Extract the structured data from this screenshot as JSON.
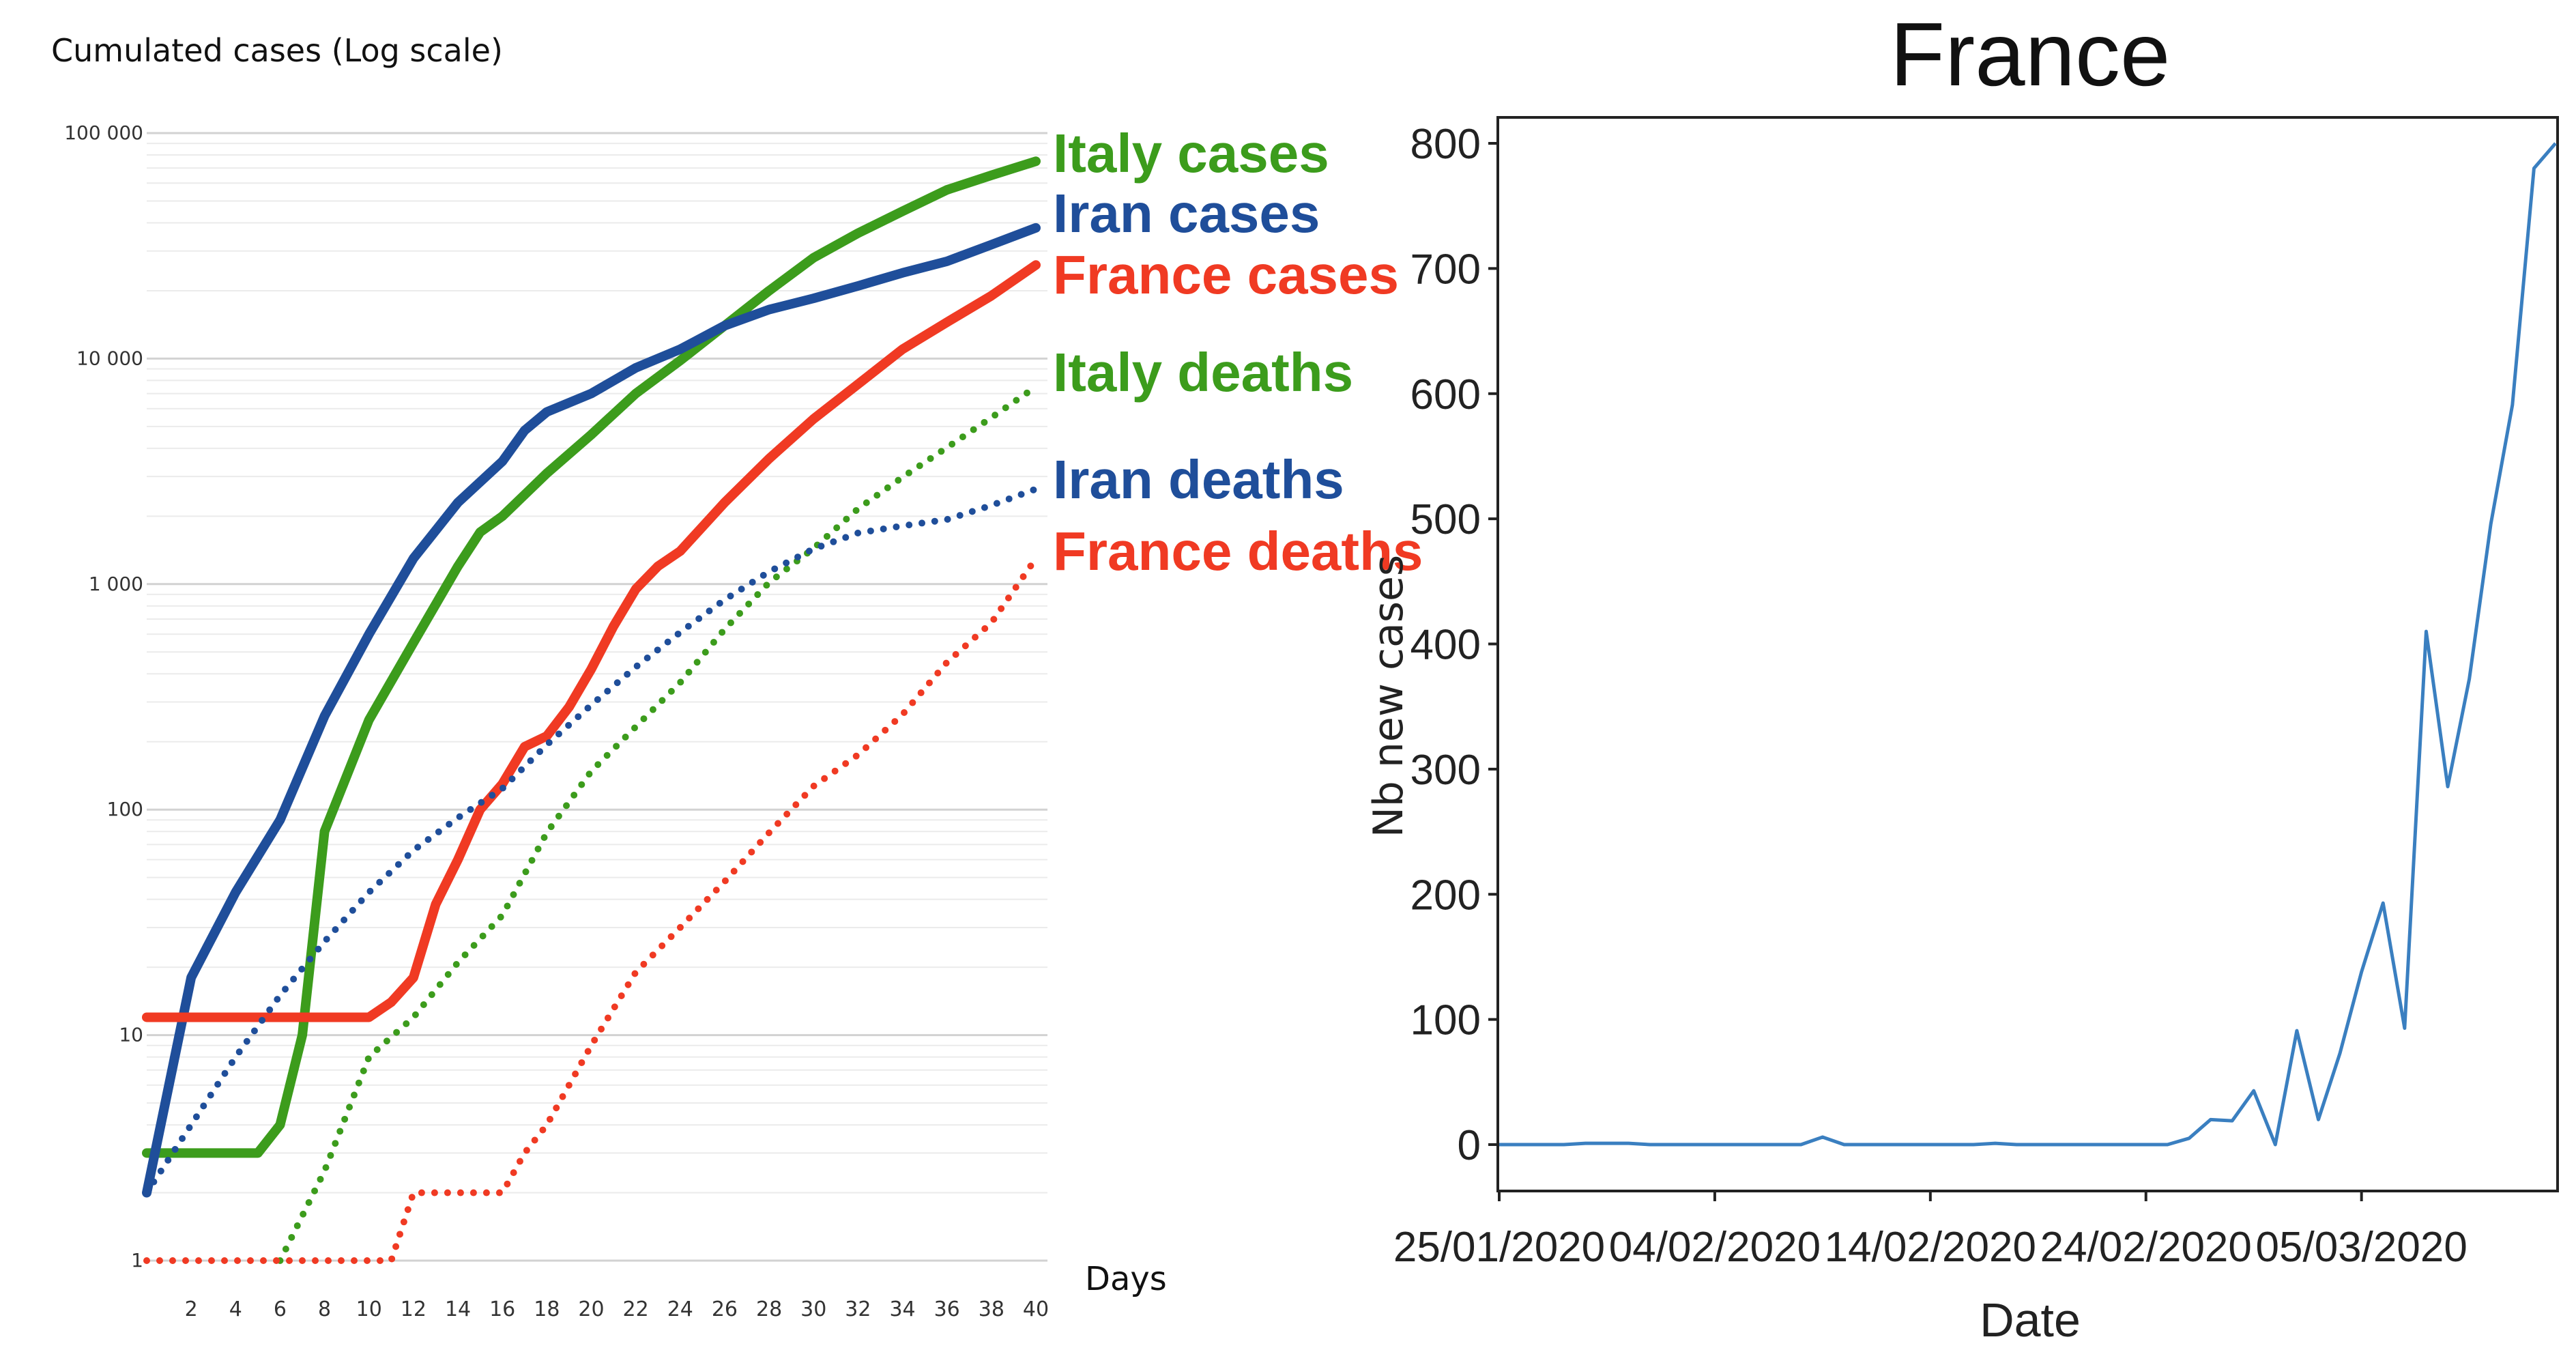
{
  "chart_data": [
    {
      "type": "line",
      "title": "",
      "ylabel": "Cumulated cases (Log scale)",
      "xlabel": "Days",
      "yscale": "log",
      "ylim": [
        1,
        100000
      ],
      "xlim": [
        0,
        40
      ],
      "ytick_labels": [
        "1",
        "10",
        "100",
        "1 000",
        "10 000",
        "100 000"
      ],
      "ytick_values": [
        1,
        10,
        100,
        1000,
        10000,
        100000
      ],
      "xtick_values": [
        2,
        4,
        6,
        8,
        10,
        12,
        14,
        16,
        18,
        20,
        22,
        24,
        26,
        28,
        30,
        32,
        34,
        36,
        38,
        40
      ],
      "xtick_labels": [
        "2",
        "4",
        "6",
        "8",
        "10",
        "12",
        "14",
        "16",
        "18",
        "20",
        "22",
        "24",
        "26",
        "28",
        "30",
        "32",
        "34",
        "36",
        "38",
        "40"
      ],
      "series": [
        {
          "name": "Italy cases",
          "color": "#3c9c1c",
          "style": "solid",
          "x": [
            0,
            2,
            4,
            5,
            6,
            7,
            8,
            10,
            12,
            14,
            15,
            16,
            18,
            20,
            22,
            24,
            26,
            28,
            30,
            32,
            34,
            36,
            38,
            40
          ],
          "values": [
            3,
            3,
            3,
            3,
            4,
            10,
            80,
            250,
            550,
            1200,
            1700,
            2000,
            3100,
            4600,
            7000,
            9800,
            14000,
            20000,
            28000,
            36000,
            45000,
            56000,
            65000,
            75000
          ]
        },
        {
          "name": "Iran cases",
          "color": "#1f4e9a",
          "style": "solid",
          "x": [
            0,
            1,
            2,
            4,
            6,
            8,
            10,
            12,
            14,
            16,
            17,
            18,
            20,
            22,
            24,
            26,
            28,
            30,
            32,
            34,
            36,
            38,
            40
          ],
          "values": [
            2,
            6,
            18,
            43,
            90,
            260,
            600,
            1300,
            2300,
            3500,
            4800,
            5800,
            7000,
            9100,
            11000,
            14000,
            16500,
            18500,
            21000,
            24000,
            27000,
            32000,
            38000
          ]
        },
        {
          "name": "France cases",
          "color": "#f03a23",
          "style": "solid",
          "x": [
            0,
            2,
            4,
            6,
            8,
            10,
            11,
            12,
            13,
            14,
            15,
            16,
            17,
            18,
            19,
            20,
            21,
            22,
            23,
            24,
            26,
            28,
            30,
            32,
            34,
            36,
            38,
            40
          ],
          "values": [
            12,
            12,
            12,
            12,
            12,
            12,
            14,
            18,
            38,
            60,
            100,
            130,
            190,
            212,
            285,
            420,
            650,
            950,
            1200,
            1400,
            2300,
            3600,
            5400,
            7700,
            11000,
            14500,
            19000,
            26000
          ]
        },
        {
          "name": "Italy deaths",
          "color": "#3c9c1c",
          "style": "dotted",
          "x": [
            6,
            8,
            10,
            12,
            14,
            16,
            18,
            20,
            22,
            24,
            26,
            28,
            30,
            32,
            34,
            36,
            38,
            40
          ],
          "values": [
            1,
            2.5,
            8,
            12,
            21,
            34,
            79,
            148,
            233,
            366,
            631,
            1016,
            1441,
            2158,
            2978,
            4032,
            5476,
            7500
          ]
        },
        {
          "name": "Iran deaths",
          "color": "#1f4e9a",
          "style": "dotted",
          "x": [
            0,
            2,
            4,
            6,
            8,
            10,
            12,
            14,
            16,
            18,
            20,
            22,
            24,
            26,
            28,
            30,
            32,
            34,
            36,
            38,
            40
          ],
          "values": [
            2,
            4,
            8,
            15,
            26,
            43,
            66,
            92,
            124,
            194,
            291,
            429,
            611,
            853,
            1135,
            1433,
            1685,
            1812,
            1934,
            2234,
            2640
          ]
        },
        {
          "name": "France deaths",
          "color": "#f03a23",
          "style": "dotted",
          "x": [
            0,
            10,
            11,
            12,
            13,
            14,
            15,
            16,
            17,
            18,
            20,
            22,
            24,
            26,
            28,
            30,
            32,
            34,
            36,
            38,
            40
          ],
          "values": [
            1,
            1,
            1,
            2,
            2,
            2,
            2,
            2,
            3,
            4,
            9,
            19,
            30,
            48,
            79,
            127,
            175,
            264,
            450,
            674,
            1300
          ]
        }
      ],
      "legend": [
        "Italy cases",
        "Iran cases",
        "France cases",
        "Italy deaths",
        "Iran deaths",
        "France deaths"
      ]
    },
    {
      "type": "line",
      "title": "France",
      "xlabel": "Date",
      "ylabel": "Nb new cases",
      "ylim": [
        -40,
        820
      ],
      "yticks": [
        0,
        100,
        200,
        300,
        400,
        500,
        600,
        700,
        800
      ],
      "xtick_labels": [
        "25/01/2020",
        "04/02/2020",
        "14/02/2020",
        "24/02/2020",
        "05/03/2020"
      ],
      "xtick_days": [
        0,
        10,
        20,
        30,
        40
      ],
      "xlim_days": [
        0,
        49
      ],
      "color": "#3a7fc0",
      "days": [
        0,
        1,
        2,
        3,
        4,
        5,
        6,
        7,
        8,
        9,
        10,
        11,
        12,
        13,
        14,
        15,
        16,
        17,
        18,
        19,
        20,
        21,
        22,
        23,
        24,
        25,
        26,
        27,
        28,
        29,
        30,
        31,
        32,
        33,
        34,
        35,
        36,
        37,
        38,
        39,
        40,
        41,
        42,
        43,
        44,
        45,
        46,
        47,
        48,
        49
      ],
      "values": [
        0,
        0,
        0,
        0,
        1,
        1,
        1,
        0,
        0,
        0,
        0,
        0,
        0,
        0,
        0,
        6,
        0,
        0,
        0,
        0,
        0,
        0,
        0,
        1,
        0,
        0,
        0,
        0,
        0,
        0,
        0,
        0,
        5,
        20,
        19,
        43,
        0,
        91,
        20,
        73,
        138,
        193,
        93,
        410,
        286,
        372,
        496,
        591,
        780,
        800
      ]
    }
  ]
}
